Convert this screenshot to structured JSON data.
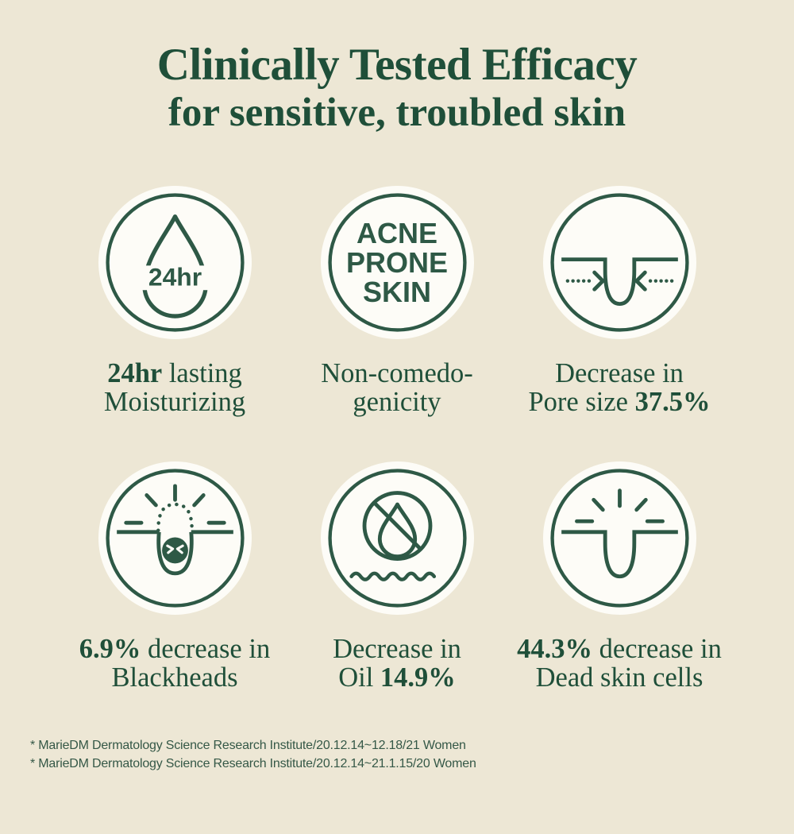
{
  "title": "Clinically Tested Efficacy",
  "subtitle": "for sensitive, troubled skin",
  "colors": {
    "background": "#EDE7D5",
    "green": "#1F4F39",
    "icon_green": "#2E5946",
    "circle_fill": "#FDFCF7",
    "footnote_green": "#355847"
  },
  "cards": [
    {
      "icon": "droplet-24hr-icon",
      "icon_text": "24hr",
      "caption": [
        [
          {
            "t": "24hr",
            "b": true
          },
          {
            "t": " lasting",
            "b": false
          }
        ],
        [
          {
            "t": "Moisturizing",
            "b": false
          }
        ]
      ]
    },
    {
      "icon": "acne-prone-skin-badge-icon",
      "icon_text": "ACNE\nPRONE\nSKIN",
      "caption": [
        [
          {
            "t": "Non-comedo-",
            "b": false
          }
        ],
        [
          {
            "t": "genicity",
            "b": false
          }
        ]
      ]
    },
    {
      "icon": "pore-tightening-icon",
      "caption": [
        [
          {
            "t": "Decrease in",
            "b": false
          }
        ],
        [
          {
            "t": "Pore size ",
            "b": false
          },
          {
            "t": "37.5%",
            "b": true
          }
        ]
      ]
    },
    {
      "icon": "blackhead-icon",
      "caption": [
        [
          {
            "t": "6.9%",
            "b": true
          },
          {
            "t": " decrease in",
            "b": false
          }
        ],
        [
          {
            "t": "Blackheads",
            "b": false
          }
        ]
      ]
    },
    {
      "icon": "no-oil-icon",
      "caption": [
        [
          {
            "t": "Decrease in",
            "b": false
          }
        ],
        [
          {
            "t": "Oil ",
            "b": false
          },
          {
            "t": "14.9%",
            "b": true
          }
        ]
      ]
    },
    {
      "icon": "clean-pore-icon",
      "caption": [
        [
          {
            "t": "44.3%",
            "b": true
          },
          {
            "t": " decrease in",
            "b": false
          }
        ],
        [
          {
            "t": "Dead skin cells",
            "b": false
          }
        ]
      ]
    }
  ],
  "footnotes": [
    "* MarieDM Dermatology Science Research Institute/20.12.14~12.18/21 Women",
    "* MarieDM Dermatology Science Research Institute/20.12.14~21.1.15/20 Women"
  ]
}
